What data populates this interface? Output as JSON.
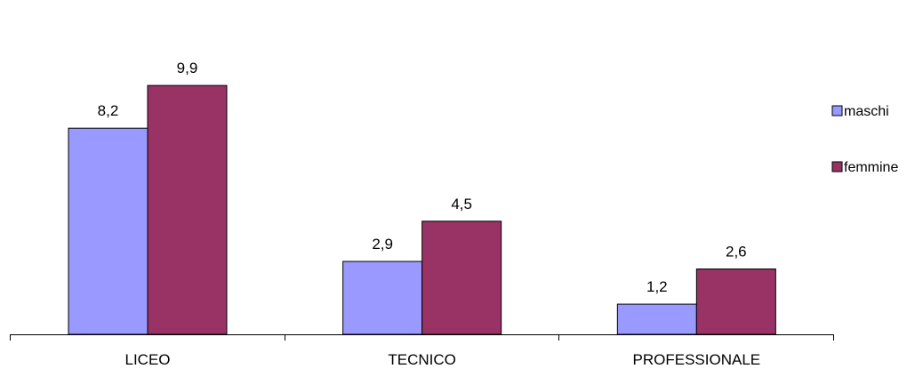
{
  "chart_data": {
    "type": "bar",
    "categories": [
      "LICEO",
      "TECNICO",
      "PROFESSIONALE"
    ],
    "series": [
      {
        "name": "maschi",
        "values": [
          8.2,
          2.9,
          1.2
        ],
        "labels": [
          "8,2",
          "2,9",
          "1,2"
        ],
        "color": "#9999ff"
      },
      {
        "name": "femmine",
        "values": [
          9.9,
          4.5,
          2.6
        ],
        "labels": [
          "9,9",
          "4,5",
          "2,6"
        ],
        "color": "#993366"
      }
    ],
    "ylim": [
      0,
      11.4
    ],
    "grid": false,
    "legend_position": "right",
    "axis_color": "#000000"
  }
}
